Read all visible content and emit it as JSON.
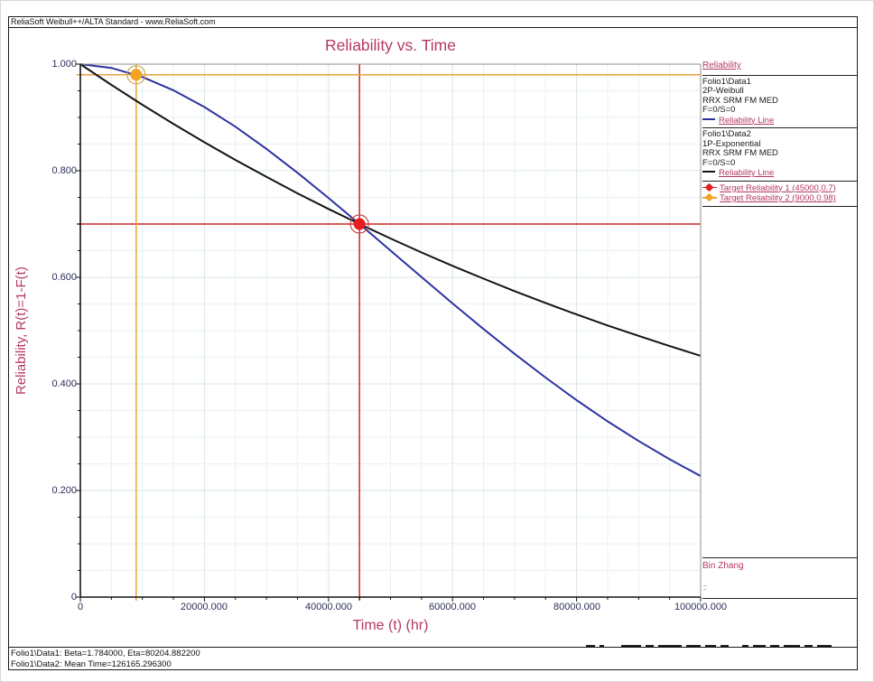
{
  "window": {
    "titlebar": "ReliaSoft Weibull++/ALTA Standard - www.ReliaSoft.com"
  },
  "chart": {
    "title": "Reliability vs. Time",
    "xlabel": "Time (t) (hr)",
    "ylabel": "Reliability, R(t)=1-F(t)"
  },
  "chart_data": {
    "type": "line",
    "title": "Reliability vs. Time",
    "xlabel": "Time (t) (hr)",
    "ylabel": "Reliability, R(t)=1-F(t)",
    "xlim": [
      0,
      100000
    ],
    "ylim": [
      0,
      1
    ],
    "grid": true,
    "legend_position": "right",
    "x_ticks": {
      "minor": 5000,
      "major": 20000,
      "labels": [
        "0",
        "20000.000",
        "40000.000",
        "60000.000",
        "80000.000",
        "100000.000"
      ]
    },
    "y_ticks": {
      "minor": 0.05,
      "major": 0.2,
      "labels": [
        "1.000",
        "0.800",
        "0.600",
        "0.400",
        "0.200",
        "0"
      ]
    },
    "colors": {
      "grid_minor": "#e9f1f1",
      "grid_major": "#d7e5e5",
      "frame_gray": "#909090",
      "axis_black": "#141414"
    },
    "series": [
      {
        "name": "Folio1\\Data1 2P-Weibull Reliability Line",
        "color": "#2d32a0",
        "params": {
          "beta": 1.784,
          "eta": 80204.8822
        },
        "x": [
          0,
          5000,
          10000,
          15000,
          20000,
          25000,
          30000,
          35000,
          40000,
          45000,
          50000,
          55000,
          60000,
          65000,
          70000,
          75000,
          80000,
          85000,
          90000,
          95000,
          100000
        ],
        "values": [
          1.0,
          0.9929,
          0.9759,
          0.951,
          0.9195,
          0.8825,
          0.8411,
          0.7963,
          0.7489,
          0.7,
          0.6502,
          0.6004,
          0.5511,
          0.5029,
          0.4564,
          0.4118,
          0.3695,
          0.3298,
          0.2928,
          0.2586,
          0.2272
        ]
      },
      {
        "name": "Folio1\\Data2 1P-Exponential Reliability Line",
        "color": "#141414",
        "params": {
          "mean_time": 126165.2963
        },
        "x": [
          0,
          5000,
          10000,
          15000,
          20000,
          25000,
          30000,
          35000,
          40000,
          45000,
          50000,
          55000,
          60000,
          65000,
          70000,
          75000,
          80000,
          85000,
          90000,
          95000,
          100000
        ],
        "values": [
          1.0,
          0.9611,
          0.9238,
          0.8879,
          0.8534,
          0.8202,
          0.7884,
          0.7577,
          0.7283,
          0.7,
          0.6728,
          0.6466,
          0.6215,
          0.5974,
          0.5741,
          0.5518,
          0.5304,
          0.5096,
          0.4901,
          0.471,
          0.4527
        ]
      }
    ],
    "targets": [
      {
        "name": "Target Reliability 1",
        "t": 45000,
        "r": 0.7,
        "line_color": "#cc2727",
        "point_color": "#e51d1d",
        "ring_color": "#bf4848"
      },
      {
        "name": "Target Reliability 2",
        "t": 9000,
        "r": 0.98,
        "line_color": "#e8a43b",
        "point_color": "#f2a322",
        "ring_color": "#cfa64e"
      }
    ]
  },
  "legend": {
    "header": "Reliability",
    "groups": [
      {
        "lines": [
          "Folio1\\Data1",
          "2P-Weibull",
          "RRX SRM FM MED",
          "F=0/S=0"
        ],
        "entry": "Reliability Line",
        "color": "#2d32a0"
      },
      {
        "lines": [
          "Folio1\\Data2",
          "1P-Exponential",
          "RRX SRM FM MED",
          "F=0/S=0"
        ],
        "entry": "Reliability Line",
        "color": "#141414"
      }
    ],
    "targets": [
      {
        "label": "Target Reliability 1 (45000,0.7)",
        "color": "#e51d1d",
        "line_color": "#cc2727"
      },
      {
        "label": "Target Reliability 2 (9000,0.98)",
        "color": "#f2a322",
        "line_color": "#e8a43b"
      }
    ]
  },
  "signature": {
    "name": "Bin Zhang"
  },
  "status": {
    "line1": "Folio1\\Data1: Beta=1.784000, Eta=80204.882200",
    "line2": "Folio1\\Data2: Mean Time=126165.296300"
  },
  "colors": {
    "accent_crimson": "#b5395f",
    "tick_navy": "#2b2f58"
  }
}
